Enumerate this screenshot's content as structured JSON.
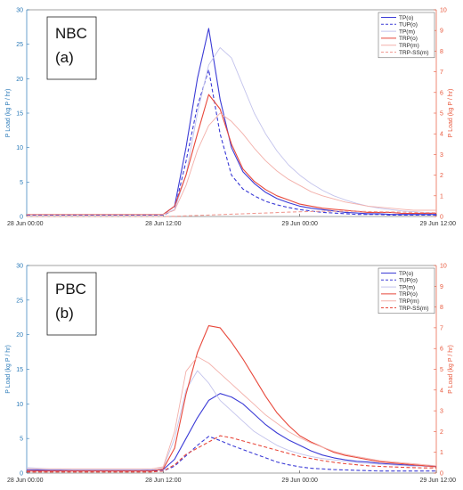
{
  "chart_data": [
    {
      "type": "line",
      "site_label": "NBC",
      "panel_label": "(a)",
      "ylabel_left": "P Load (kg P / hr)",
      "ylabel_right": "P Load (kg P / hr)",
      "ylim_left": [
        0,
        30
      ],
      "ylim_right": [
        0,
        10
      ],
      "yticks_left": [
        0,
        5,
        10,
        15,
        20,
        25,
        30
      ],
      "yticks_right": [
        0,
        1,
        2,
        3,
        4,
        5,
        6,
        7,
        8,
        9,
        10
      ],
      "x_hours": [
        0,
        1,
        2,
        3,
        4,
        5,
        6,
        7,
        8,
        9,
        10,
        11,
        12,
        13,
        14,
        15,
        16,
        17,
        18,
        19,
        20,
        21,
        22,
        23,
        24,
        25,
        26,
        27,
        28,
        29,
        30,
        31,
        32,
        33,
        34,
        35,
        36
      ],
      "xlim_hours": [
        0,
        36
      ],
      "xticks_hours": [
        0,
        12,
        24,
        36
      ],
      "xtick_labels": [
        "28 Jun 00:00",
        "28 Jun 12:00",
        "29 Jun 00:00",
        "29 Jun 12:00"
      ],
      "legend_position": "top-right",
      "series": [
        {
          "name": "TP(o)",
          "axis": "left",
          "color": "#3b3bd6",
          "style": "solid",
          "values": [
            0.3,
            0.3,
            0.3,
            0.3,
            0.3,
            0.3,
            0.3,
            0.3,
            0.3,
            0.3,
            0.3,
            0.3,
            0.3,
            1.5,
            10,
            20,
            27.3,
            17,
            10,
            6.5,
            4.8,
            3.5,
            2.6,
            2,
            1.5,
            1.2,
            1,
            0.8,
            0.6,
            0.5,
            0.4,
            0.4,
            0.3,
            0.3,
            0.3,
            0.3,
            0.3
          ]
        },
        {
          "name": "TUP(o)",
          "axis": "left",
          "color": "#3b3bd6",
          "style": "dashed",
          "values": [
            0.2,
            0.2,
            0.2,
            0.2,
            0.2,
            0.2,
            0.2,
            0.2,
            0.2,
            0.2,
            0.2,
            0.2,
            0.2,
            1,
            8,
            16,
            21.3,
            12,
            6,
            4,
            3,
            2.2,
            1.7,
            1.3,
            1,
            0.8,
            0.6,
            0.5,
            0.4,
            0.3,
            0.3,
            0.3,
            0.2,
            0.2,
            0.2,
            0.2,
            0.2
          ]
        },
        {
          "name": "TP(m)",
          "axis": "left",
          "color": "#c3c3ec",
          "style": "solid",
          "values": [
            0.3,
            0.3,
            0.3,
            0.3,
            0.3,
            0.3,
            0.3,
            0.3,
            0.3,
            0.3,
            0.3,
            0.3,
            0.3,
            1,
            6,
            15,
            22,
            24.5,
            23,
            19,
            15,
            12,
            9.5,
            7.5,
            6,
            4.8,
            3.8,
            3,
            2.4,
            1.9,
            1.5,
            1.2,
            1,
            0.8,
            0.7,
            0.6,
            0.5
          ]
        },
        {
          "name": "TRP(o)",
          "axis": "right",
          "color": "#e8483b",
          "style": "solid",
          "values": [
            0.1,
            0.1,
            0.1,
            0.1,
            0.1,
            0.1,
            0.1,
            0.1,
            0.1,
            0.1,
            0.1,
            0.1,
            0.1,
            0.5,
            2,
            4,
            5.9,
            5.2,
            3.5,
            2.3,
            1.7,
            1.3,
            1,
            0.8,
            0.6,
            0.5,
            0.4,
            0.35,
            0.3,
            0.25,
            0.2,
            0.2,
            0.2,
            0.15,
            0.15,
            0.15,
            0.15
          ]
        },
        {
          "name": "TRP(m)",
          "axis": "right",
          "color": "#f3b0aa",
          "style": "solid",
          "values": [
            0.1,
            0.1,
            0.1,
            0.1,
            0.1,
            0.1,
            0.1,
            0.1,
            0.1,
            0.1,
            0.1,
            0.1,
            0.1,
            0.3,
            1.5,
            3.2,
            4.4,
            5,
            4.6,
            4,
            3.3,
            2.7,
            2.2,
            1.8,
            1.5,
            1.2,
            1,
            0.85,
            0.7,
            0.6,
            0.5,
            0.45,
            0.4,
            0.35,
            0.3,
            0.3,
            0.3
          ]
        },
        {
          "name": "TRP-SS(m)",
          "axis": "right",
          "color": "#f09a92",
          "style": "dashed",
          "values": [
            0,
            0,
            0,
            0,
            0,
            0,
            0,
            0,
            0,
            0,
            0,
            0,
            0,
            0.01,
            0.03,
            0.05,
            0.07,
            0.09,
            0.11,
            0.13,
            0.15,
            0.17,
            0.19,
            0.21,
            0.23,
            0.24,
            0.25,
            0.25,
            0.25,
            0.25,
            0.24,
            0.23,
            0.22,
            0.21,
            0.2,
            0.19,
            0.18
          ]
        }
      ]
    },
    {
      "type": "line",
      "site_label": "PBC",
      "panel_label": "(b)",
      "ylabel_left": "P Load (kg P / hr)",
      "ylabel_right": "P Load (kg P / hr)",
      "ylim_left": [
        0,
        30
      ],
      "ylim_right": [
        0,
        10
      ],
      "yticks_left": [
        0,
        5,
        10,
        15,
        20,
        25,
        30
      ],
      "yticks_right": [
        0,
        1,
        2,
        3,
        4,
        5,
        6,
        7,
        8,
        9,
        10
      ],
      "x_hours": [
        0,
        1,
        2,
        3,
        4,
        5,
        6,
        7,
        8,
        9,
        10,
        11,
        12,
        13,
        14,
        15,
        16,
        17,
        18,
        19,
        20,
        21,
        22,
        23,
        24,
        25,
        26,
        27,
        28,
        29,
        30,
        31,
        32,
        33,
        34,
        35,
        36
      ],
      "xlim_hours": [
        0,
        36
      ],
      "xticks_hours": [
        0,
        12,
        24,
        36
      ],
      "xtick_labels": [
        "28 Jun 00:00",
        "28 Jun 12:00",
        "29 Jun 00:00",
        "29 Jun 12:00"
      ],
      "legend_position": "top-right",
      "series": [
        {
          "name": "TP(o)",
          "axis": "left",
          "color": "#3b3bd6",
          "style": "solid",
          "values": [
            0.5,
            0.45,
            0.4,
            0.4,
            0.35,
            0.35,
            0.35,
            0.35,
            0.35,
            0.35,
            0.35,
            0.4,
            0.5,
            2,
            5,
            8,
            10.5,
            11.5,
            11,
            10,
            8.5,
            7,
            5.8,
            4.8,
            4,
            3.2,
            2.6,
            2.2,
            1.9,
            1.7,
            1.6,
            1.4,
            1.3,
            1.2,
            1.1,
            1,
            1
          ]
        },
        {
          "name": "TUP(o)",
          "axis": "left",
          "color": "#3b3bd6",
          "style": "dashed",
          "values": [
            0.3,
            0.3,
            0.3,
            0.3,
            0.3,
            0.3,
            0.3,
            0.3,
            0.3,
            0.3,
            0.3,
            0.3,
            0.3,
            1,
            2.5,
            4,
            5.3,
            4.7,
            4,
            3.4,
            2.8,
            2.2,
            1.6,
            1.2,
            0.9,
            0.7,
            0.6,
            0.5,
            0.45,
            0.4,
            0.35,
            0.3,
            0.3,
            0.3,
            0.3,
            0.3,
            0.3
          ]
        },
        {
          "name": "TP(m)",
          "axis": "left",
          "color": "#c3c3ec",
          "style": "solid",
          "values": [
            0.8,
            0.7,
            0.6,
            0.6,
            0.5,
            0.5,
            0.5,
            0.5,
            0.5,
            0.5,
            0.5,
            0.6,
            0.8,
            5,
            12,
            14.8,
            13,
            10.5,
            9,
            7.5,
            6,
            5,
            4,
            3.3,
            2.8,
            2.4,
            2.1,
            1.9,
            1.7,
            1.5,
            1.4,
            1.3,
            1.2,
            1.1,
            1,
            1,
            0.9
          ]
        },
        {
          "name": "TRP(o)",
          "axis": "right",
          "color": "#e8483b",
          "style": "solid",
          "values": [
            0.1,
            0.1,
            0.1,
            0.1,
            0.1,
            0.1,
            0.1,
            0.1,
            0.1,
            0.1,
            0.1,
            0.1,
            0.2,
            1.2,
            3.8,
            5.8,
            7.1,
            7,
            6.3,
            5.5,
            4.6,
            3.7,
            2.9,
            2.3,
            1.8,
            1.5,
            1.25,
            1,
            0.85,
            0.75,
            0.65,
            0.55,
            0.5,
            0.45,
            0.4,
            0.35,
            0.3
          ]
        },
        {
          "name": "TRP(m)",
          "axis": "right",
          "color": "#f3b0aa",
          "style": "solid",
          "values": [
            0.2,
            0.2,
            0.2,
            0.2,
            0.2,
            0.2,
            0.2,
            0.2,
            0.2,
            0.2,
            0.2,
            0.2,
            0.3,
            2,
            4.9,
            5.6,
            5.3,
            4.8,
            4.3,
            3.8,
            3.3,
            2.8,
            2.4,
            2,
            1.7,
            1.45,
            1.25,
            1.05,
            0.9,
            0.8,
            0.7,
            0.6,
            0.55,
            0.5,
            0.45,
            0.4,
            0.35
          ]
        },
        {
          "name": "TRP-SS(m)",
          "axis": "right",
          "color": "#e8483b",
          "style": "dashed",
          "values": [
            0.05,
            0.05,
            0.05,
            0.05,
            0.05,
            0.05,
            0.05,
            0.05,
            0.05,
            0.05,
            0.05,
            0.05,
            0.1,
            0.4,
            0.9,
            1.2,
            1.5,
            1.8,
            1.7,
            1.55,
            1.4,
            1.25,
            1.1,
            0.95,
            0.8,
            0.7,
            0.6,
            0.52,
            0.45,
            0.4,
            0.35,
            0.32,
            0.3,
            0.28,
            0.26,
            0.25,
            0.25
          ]
        }
      ]
    }
  ]
}
